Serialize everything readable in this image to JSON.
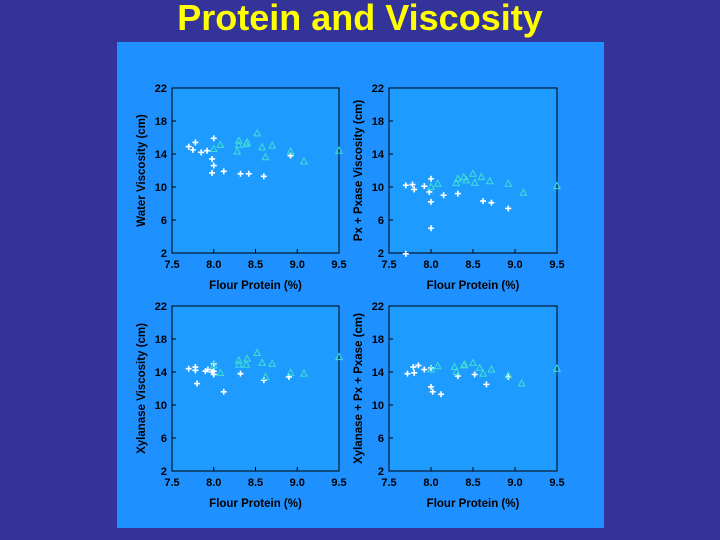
{
  "slide": {
    "title": "Protein and Viscosity",
    "background": "#333399",
    "title_color": "#ffff00",
    "panel_color": "#1e90ff",
    "axes_color": "#1e9bff"
  },
  "series_styles": [
    {
      "marker": "plus",
      "color": "#ffffff"
    },
    {
      "marker": "triangle",
      "color": "#40e0d0"
    }
  ],
  "chart_data": [
    {
      "type": "scatter",
      "xlabel": "Flour Protein (%)",
      "ylabel": "Water Viscosity (cm)",
      "xlim": [
        7.5,
        9.5
      ],
      "ylim": [
        2,
        22
      ],
      "xticks": [
        "7.5",
        "8.0",
        "8.5",
        "9.0",
        "9.5"
      ],
      "yticks": [
        "2",
        "6",
        "10",
        "14",
        "18",
        "22"
      ],
      "grid": false,
      "series": [
        {
          "points": [
            [
              7.7,
              14.9
            ],
            [
              7.75,
              14.5
            ],
            [
              7.78,
              15.4
            ],
            [
              7.85,
              14.2
            ],
            [
              7.92,
              14.4
            ],
            [
              8.0,
              15.9
            ],
            [
              7.98,
              13.4
            ],
            [
              8.0,
              12.6
            ],
            [
              7.98,
              11.7
            ],
            [
              8.12,
              11.9
            ],
            [
              8.32,
              11.6
            ],
            [
              8.42,
              11.6
            ],
            [
              8.6,
              11.3
            ],
            [
              8.92,
              13.8
            ]
          ]
        },
        {
          "points": [
            [
              8.0,
              14.6
            ],
            [
              8.08,
              15.1
            ],
            [
              8.28,
              14.3
            ],
            [
              8.3,
              15.1
            ],
            [
              8.3,
              15.6
            ],
            [
              8.39,
              15.2
            ],
            [
              8.4,
              15.4
            ],
            [
              8.52,
              16.5
            ],
            [
              8.58,
              14.8
            ],
            [
              8.62,
              13.6
            ],
            [
              8.7,
              15.0
            ],
            [
              8.92,
              14.3
            ],
            [
              9.08,
              13.1
            ],
            [
              9.5,
              14.4
            ]
          ]
        }
      ]
    },
    {
      "type": "scatter",
      "xlabel": "Flour Protein (%)",
      "ylabel": "Px + Pxase Viscosity (cm)",
      "xlim": [
        7.5,
        9.5
      ],
      "ylim": [
        2,
        22
      ],
      "xticks": [
        "7.5",
        "8.0",
        "8.5",
        "9.0",
        "9.5"
      ],
      "yticks": [
        "2",
        "6",
        "10",
        "14",
        "18",
        "22"
      ],
      "grid": false,
      "series": [
        {
          "points": [
            [
              7.7,
              10.2
            ],
            [
              7.78,
              10.3
            ],
            [
              7.8,
              9.7
            ],
            [
              7.92,
              10.1
            ],
            [
              8.0,
              11.0
            ],
            [
              7.98,
              9.4
            ],
            [
              8.0,
              8.2
            ],
            [
              8.0,
              5.0
            ],
            [
              7.7,
              1.9
            ],
            [
              8.15,
              9.0
            ],
            [
              8.32,
              9.2
            ],
            [
              8.62,
              8.3
            ],
            [
              8.72,
              8.1
            ],
            [
              8.92,
              7.4
            ]
          ]
        },
        {
          "points": [
            [
              8.0,
              10.0
            ],
            [
              8.08,
              10.4
            ],
            [
              8.3,
              10.5
            ],
            [
              8.32,
              11.0
            ],
            [
              8.39,
              11.2
            ],
            [
              8.42,
              10.8
            ],
            [
              8.5,
              11.6
            ],
            [
              8.52,
              10.5
            ],
            [
              8.6,
              11.2
            ],
            [
              8.7,
              10.7
            ],
            [
              8.92,
              10.4
            ],
            [
              9.1,
              9.3
            ],
            [
              9.5,
              10.1
            ]
          ]
        }
      ]
    },
    {
      "type": "scatter",
      "xlabel": "Flour Protein (%)",
      "ylabel": "Xylanase Viscosity (cm)",
      "xlim": [
        7.5,
        9.5
      ],
      "ylim": [
        2,
        22
      ],
      "xticks": [
        "7.5",
        "8.0",
        "8.5",
        "9.0",
        "9.5"
      ],
      "yticks": [
        "2",
        "6",
        "10",
        "14",
        "18",
        "22"
      ],
      "grid": false,
      "series": [
        {
          "points": [
            [
              7.7,
              14.4
            ],
            [
              7.78,
              14.6
            ],
            [
              7.78,
              14.2
            ],
            [
              7.8,
              12.6
            ],
            [
              7.9,
              14.1
            ],
            [
              7.93,
              14.3
            ],
            [
              8.0,
              15.0
            ],
            [
              8.0,
              14.1
            ],
            [
              8.0,
              13.7
            ],
            [
              7.98,
              14.0
            ],
            [
              8.12,
              11.6
            ],
            [
              8.32,
              13.8
            ],
            [
              8.6,
              13.0
            ],
            [
              8.9,
              13.4
            ]
          ]
        },
        {
          "points": [
            [
              8.0,
              14.8
            ],
            [
              8.08,
              13.9
            ],
            [
              8.3,
              14.9
            ],
            [
              8.3,
              15.4
            ],
            [
              8.4,
              15.6
            ],
            [
              8.39,
              14.9
            ],
            [
              8.52,
              16.3
            ],
            [
              8.58,
              15.1
            ],
            [
              8.62,
              13.4
            ],
            [
              8.7,
              15.0
            ],
            [
              8.92,
              13.9
            ],
            [
              9.08,
              13.8
            ],
            [
              9.5,
              15.8
            ]
          ]
        }
      ]
    },
    {
      "type": "scatter",
      "xlabel": "Flour Protein (%)",
      "ylabel": "Xylanase + Px + Pxase (cm)",
      "xlim": [
        7.5,
        9.5
      ],
      "ylim": [
        2,
        22
      ],
      "xticks": [
        "7.5",
        "8.0",
        "8.5",
        "9.0",
        "9.5"
      ],
      "yticks": [
        "2",
        "6",
        "10",
        "14",
        "18",
        "22"
      ],
      "grid": false,
      "series": [
        {
          "points": [
            [
              7.72,
              13.8
            ],
            [
              7.79,
              14.6
            ],
            [
              7.85,
              14.8
            ],
            [
              7.8,
              13.9
            ],
            [
              7.92,
              14.3
            ],
            [
              8.0,
              14.5
            ],
            [
              8.0,
              12.2
            ],
            [
              8.02,
              11.6
            ],
            [
              8.12,
              11.3
            ],
            [
              8.32,
              13.5
            ],
            [
              8.52,
              13.7
            ],
            [
              8.66,
              12.5
            ],
            [
              8.92,
              13.4
            ]
          ]
        },
        {
          "points": [
            [
              8.0,
              14.3
            ],
            [
              8.08,
              14.7
            ],
            [
              8.28,
              14.6
            ],
            [
              8.3,
              14.0
            ],
            [
              8.39,
              14.8
            ],
            [
              8.4,
              14.9
            ],
            [
              8.5,
              15.1
            ],
            [
              8.58,
              14.5
            ],
            [
              8.62,
              13.8
            ],
            [
              8.72,
              14.3
            ],
            [
              8.92,
              13.6
            ],
            [
              9.08,
              12.6
            ],
            [
              9.5,
              14.4
            ]
          ]
        }
      ]
    }
  ]
}
